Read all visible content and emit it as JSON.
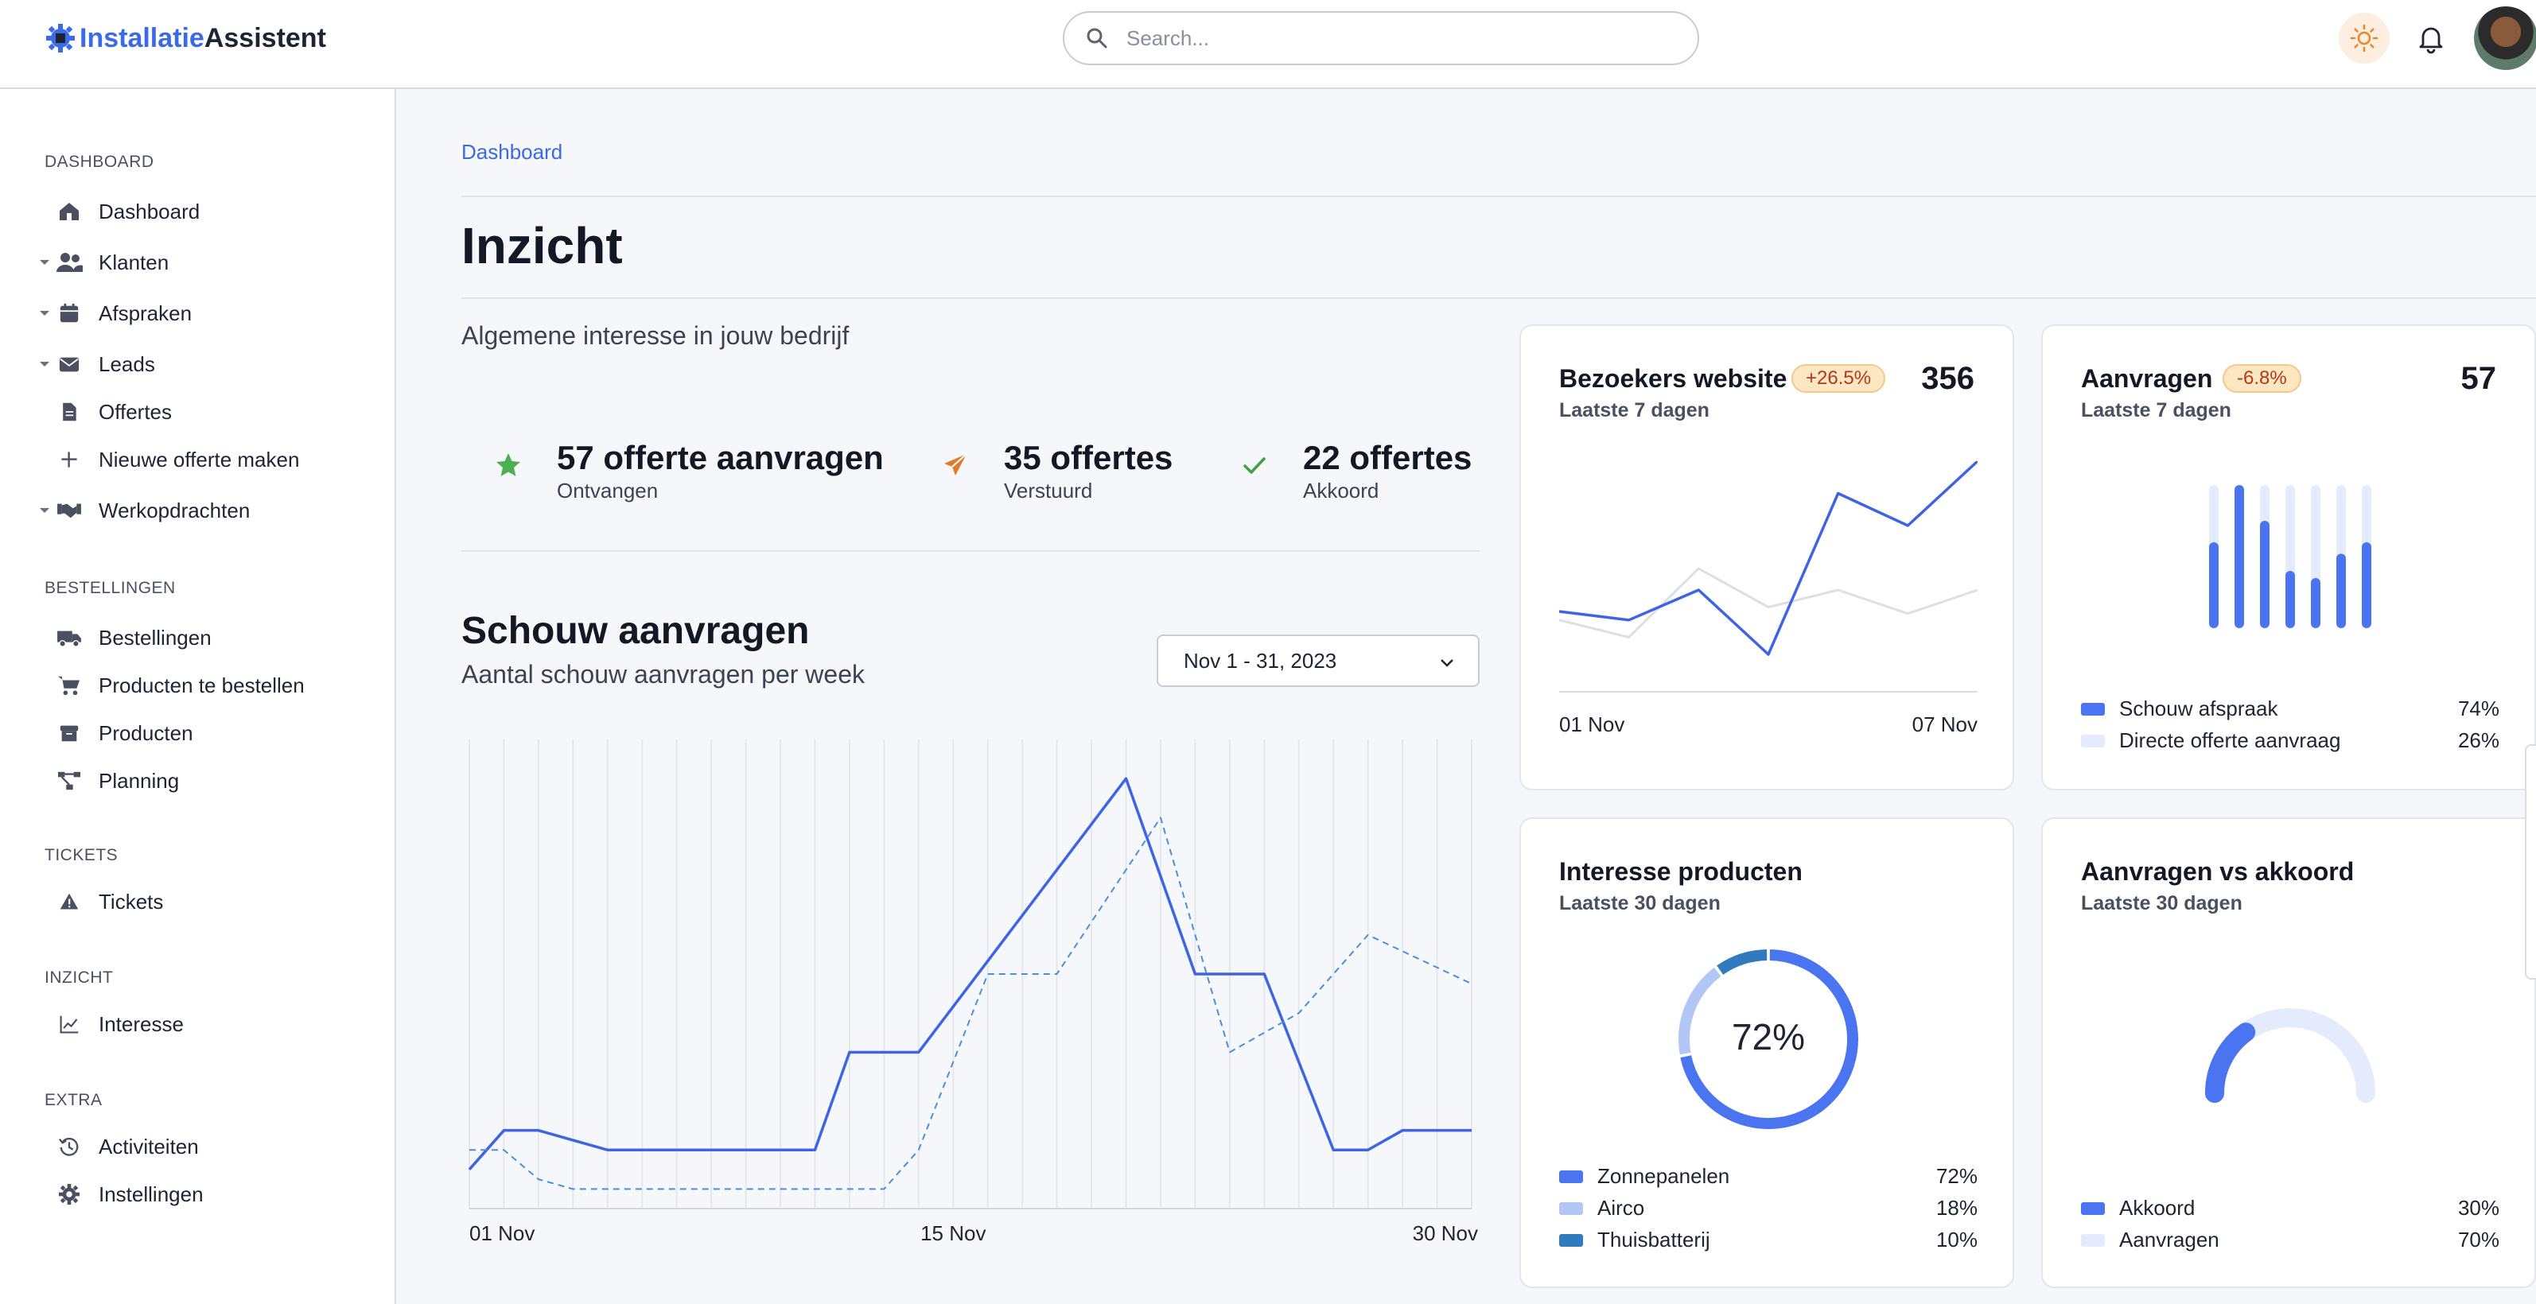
{
  "app": {
    "name_part1": "Installatie",
    "name_part2": "Assistent"
  },
  "search": {
    "placeholder": "Search..."
  },
  "sidebar": {
    "sections": [
      {
        "title": "DASHBOARD",
        "items": [
          {
            "label": "Dashboard",
            "icon": "house-icon",
            "caret": false
          },
          {
            "label": "Klanten",
            "icon": "users-icon",
            "caret": true
          },
          {
            "label": "Afspraken",
            "icon": "calendar-icon",
            "caret": true
          },
          {
            "label": "Leads",
            "icon": "envelope-icon",
            "caret": true
          },
          {
            "label": "Offertes",
            "icon": "document-icon",
            "caret": false
          },
          {
            "label": "Nieuwe offerte maken",
            "icon": "plus-icon",
            "caret": false
          },
          {
            "label": "Werkopdrachten",
            "icon": "handshake-icon",
            "caret": true
          }
        ]
      },
      {
        "title": "BESTELLINGEN",
        "items": [
          {
            "label": "Bestellingen",
            "icon": "truck-icon",
            "caret": false
          },
          {
            "label": "Producten te bestellen",
            "icon": "cart-icon",
            "caret": false
          },
          {
            "label": "Producten",
            "icon": "box-icon",
            "caret": false
          },
          {
            "label": "Planning",
            "icon": "flow-icon",
            "caret": false
          }
        ]
      },
      {
        "title": "TICKETS",
        "items": [
          {
            "label": "Tickets",
            "icon": "warning-icon",
            "caret": false
          }
        ]
      },
      {
        "title": "INZICHT",
        "items": [
          {
            "label": "Interesse",
            "icon": "line-chart-icon",
            "caret": false
          }
        ]
      },
      {
        "title": "EXTRA",
        "items": [
          {
            "label": "Activiteiten",
            "icon": "history-icon",
            "caret": false
          },
          {
            "label": "Instellingen",
            "icon": "gear-icon",
            "caret": false
          }
        ]
      }
    ]
  },
  "main": {
    "breadcrumb": "Dashboard",
    "title": "Inzicht",
    "subtitle": "Algemene interesse in jouw bedrijf",
    "stats": [
      {
        "value": "57 offerte aanvragen",
        "label": "Ontvangen",
        "icon": "star-icon",
        "color": "#4caf50"
      },
      {
        "value": "35 offertes",
        "label": "Verstuurd",
        "icon": "paper-plane-icon",
        "color": "#e07b2a"
      },
      {
        "value": "22 offertes",
        "label": "Akkoord",
        "icon": "check-icon",
        "color": "#43a047"
      }
    ],
    "schouw": {
      "title": "Schouw aanvragen",
      "subtitle": "Aantal schouw aanvragen per week",
      "date_range": "Nov 1 - 31, 2023"
    }
  },
  "cards": {
    "visitors": {
      "title": "Bezoekers website",
      "subtitle": "Laatste 7 dagen",
      "badge": "+26.5%",
      "value": "356",
      "x_start": "01 Nov",
      "x_end": "07 Nov"
    },
    "aanvragen": {
      "title": "Aanvragen",
      "subtitle": "Laatste 7 dagen",
      "badge": "-6.8%",
      "value": "57",
      "legend": [
        {
          "name": "Schouw afspraak",
          "pct": "74%",
          "color": "#4a74f0"
        },
        {
          "name": "Directe offerte aanvraag",
          "pct": "26%",
          "color": "#e3ebfd"
        }
      ]
    },
    "interesse": {
      "title": "Interesse producten",
      "subtitle": "Laatste 30 dagen",
      "center": "72%",
      "legend": [
        {
          "name": "Zonnepanelen",
          "pct": "72%",
          "color": "#4a74f0"
        },
        {
          "name": "Airco",
          "pct": "18%",
          "color": "#b3c7f7"
        },
        {
          "name": "Thuisbatterij",
          "pct": "10%",
          "color": "#2f7bbd"
        }
      ]
    },
    "akkoord": {
      "title": "Aanvragen vs akkoord",
      "subtitle": "Laatste 30 dagen",
      "legend": [
        {
          "name": "Akkoord",
          "pct": "30%",
          "color": "#4a74f0"
        },
        {
          "name": "Aanvragen",
          "pct": "70%",
          "color": "#e3ebfd"
        }
      ]
    }
  },
  "chart_data": [
    {
      "type": "line",
      "x_tick_labels": [
        "01 Nov",
        "15 Nov",
        "30 Nov"
      ],
      "series": [
        {
          "style": "solid",
          "color": "#3e64e6",
          "x": [
            1,
            2,
            3,
            5,
            7,
            9,
            11,
            12,
            14,
            20,
            22,
            24,
            26,
            27,
            28,
            30
          ],
          "values": [
            2,
            4,
            4,
            3,
            3,
            3,
            3,
            8,
            8,
            22,
            12,
            12,
            3,
            3,
            4,
            4
          ]
        },
        {
          "style": "dashed",
          "color": "#4a90d9",
          "x": [
            1,
            2,
            3,
            4,
            8,
            13,
            14,
            16,
            18,
            21,
            23,
            25,
            27,
            30
          ],
          "values": [
            3,
            3,
            1.5,
            1,
            1,
            1,
            3,
            12,
            12,
            20,
            8,
            10,
            14,
            11.5
          ]
        }
      ],
      "xlim": [
        1,
        30
      ],
      "ylim": [
        0,
        24
      ]
    },
    {
      "type": "line",
      "x_tick_labels": [
        "01 Nov",
        "07 Nov"
      ],
      "series": [
        {
          "color": "#3e64e6",
          "x": [
            1,
            2,
            3,
            4,
            5,
            6,
            7
          ],
          "values": [
            30,
            26,
            40,
            10,
            85,
            70,
            100
          ]
        },
        {
          "color": "#dcdfe5",
          "x": [
            1,
            2,
            3,
            4,
            5,
            6,
            7
          ],
          "values": [
            26,
            18,
            50,
            32,
            40,
            29,
            40
          ]
        }
      ],
      "xlim": [
        1,
        7
      ],
      "ylim": [
        0,
        100
      ]
    },
    {
      "type": "bar",
      "categories": [
        "1",
        "2",
        "3",
        "4",
        "5",
        "6",
        "7"
      ],
      "series": [
        {
          "name": "Schouw afspraak",
          "values": [
            60,
            100,
            75,
            40,
            35,
            52,
            60
          ]
        }
      ],
      "ylim": [
        0,
        100
      ]
    },
    {
      "type": "pie",
      "labels": [
        "Zonnepanelen",
        "Airco",
        "Thuisbatterij"
      ],
      "values": [
        72,
        18,
        10
      ]
    },
    {
      "type": "pie",
      "labels": [
        "Akkoord",
        "Aanvragen"
      ],
      "values": [
        30,
        70
      ]
    }
  ]
}
